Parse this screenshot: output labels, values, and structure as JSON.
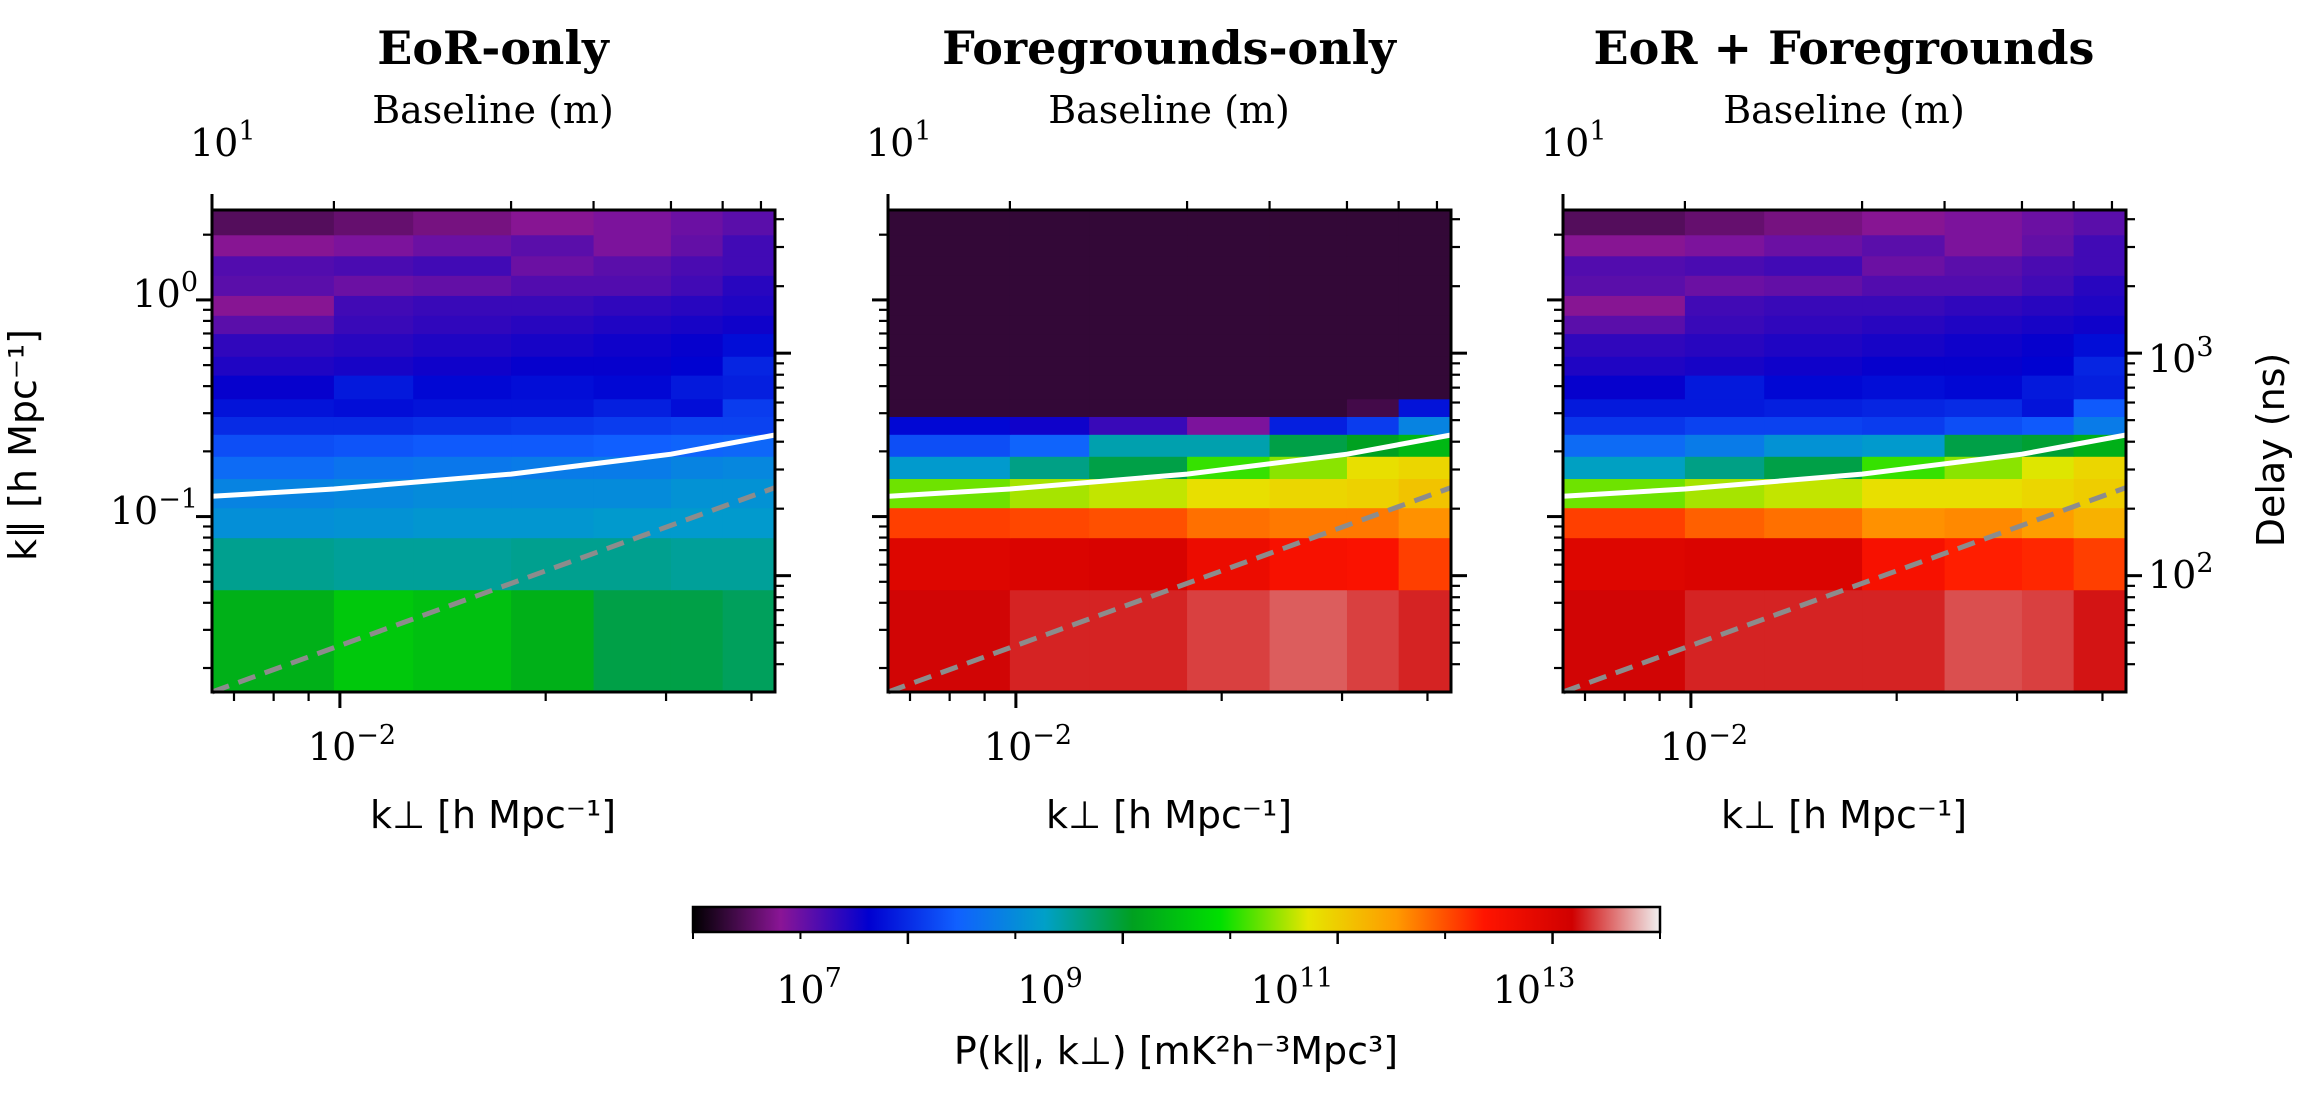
{
  "chart_data": {
    "type": "heatmap",
    "colorbar": {
      "label": "P(k∥, k⊥) [mK²h⁻³Mpc³]",
      "scale": "log",
      "range": [
        100000,
        100000000000000
      ],
      "ticks": [
        {
          "base": "10",
          "exp": "7",
          "value": 10000000
        },
        {
          "base": "10",
          "exp": "9",
          "value": 1000000000
        },
        {
          "base": "10",
          "exp": "11",
          "value": 100000000000
        },
        {
          "base": "10",
          "exp": "13",
          "value": 10000000000000
        }
      ],
      "colors": [
        "#000000",
        "#8a1596",
        "#0000d0",
        "#1060ff",
        "#00a0c8",
        "#00a020",
        "#00e000",
        "#e6e600",
        "#ff9a00",
        "#ff1400",
        "#d00000",
        "#f0f0f0"
      ]
    },
    "kperp_edges": [
      0.0065,
      0.0098,
      0.0128,
      0.0178,
      0.0235,
      0.0305,
      0.0363,
      0.0433
    ],
    "kpar_edges": [
      0.0155,
      0.046,
      0.08,
      0.11,
      0.15,
      0.19,
      0.24,
      0.29,
      0.35,
      0.45,
      0.55,
      0.7,
      0.85,
      1.05,
      1.3,
      1.6,
      2.0,
      2.6
    ],
    "panels": [
      {
        "title": "EoR-only",
        "top_label": "Baseline (m)",
        "top_tick": {
          "base": "10",
          "exp": "1"
        },
        "xlabel": "k⊥ [h Mpc⁻¹]",
        "ylabel": "k∥ [h Mpc⁻¹]",
        "x_tick": {
          "base": "10",
          "exp": "−2"
        },
        "y_ticks": [
          {
            "base": "10",
            "exp": "0"
          },
          {
            "base": "10",
            "exp": "−1"
          }
        ],
        "horizon_line": {
          "kperp": [
            0.0065,
            0.0098,
            0.0178,
            0.0305,
            0.0433
          ],
          "kpar": [
            0.124,
            0.134,
            0.157,
            0.194,
            0.238
          ]
        },
        "wedge_line": {
          "kperp": [
            0.0065,
            0.0433
          ],
          "kpar": [
            0.0155,
            0.136
          ]
        },
        "log10_power": [
          [
            9.3,
            9.6,
            9.5,
            9.3,
            8.9,
            8.9,
            8.8
          ],
          [
            8.55,
            8.5,
            8.5,
            8.55,
            8.55,
            8.5,
            8.5
          ],
          [
            8.05,
            8.1,
            8.15,
            8.15,
            8.2,
            8.2,
            8.2
          ],
          [
            7.9,
            7.95,
            8.0,
            8.0,
            8.0,
            8.1,
            8.1
          ],
          [
            7.6,
            7.7,
            7.75,
            7.8,
            7.8,
            7.9,
            7.95
          ],
          [
            7.3,
            7.35,
            7.4,
            7.4,
            7.45,
            7.5,
            7.55
          ],
          [
            7.0,
            7.0,
            7.05,
            7.1,
            7.15,
            7.2,
            7.2
          ],
          [
            6.8,
            6.75,
            6.8,
            6.8,
            6.9,
            6.75,
            7.15
          ],
          [
            6.6,
            6.85,
            6.7,
            6.75,
            6.7,
            6.85,
            6.9
          ],
          [
            6.45,
            6.5,
            6.55,
            6.6,
            6.6,
            6.65,
            6.95
          ],
          [
            6.35,
            6.4,
            6.45,
            6.5,
            6.55,
            6.6,
            6.75
          ],
          [
            6.1,
            6.3,
            6.35,
            6.4,
            6.45,
            6.5,
            6.55
          ],
          [
            5.8,
            6.25,
            6.3,
            6.3,
            6.35,
            6.4,
            6.45
          ],
          [
            6.1,
            6.0,
            6.05,
            6.15,
            6.15,
            6.25,
            6.4
          ],
          [
            6.15,
            6.2,
            6.25,
            6.0,
            6.1,
            6.2,
            6.25
          ],
          [
            5.8,
            5.9,
            6.0,
            6.1,
            5.9,
            6.05,
            6.25
          ],
          [
            5.5,
            5.6,
            5.7,
            5.8,
            5.9,
            6.0,
            6.1
          ]
        ]
      },
      {
        "title": "Foregrounds-only",
        "top_label": "Baseline (m)",
        "top_tick": {
          "base": "10",
          "exp": "1"
        },
        "xlabel": "k⊥ [h Mpc⁻¹]",
        "ylabel": "",
        "x_tick": {
          "base": "10",
          "exp": "−2"
        },
        "y_ticks": [],
        "horizon_line": {
          "kperp": [
            0.0065,
            0.0098,
            0.0178,
            0.0305,
            0.0433
          ],
          "kpar": [
            0.124,
            0.134,
            0.157,
            0.194,
            0.238
          ]
        },
        "wedge_line": {
          "kperp": [
            0.0065,
            0.0433
          ],
          "kpar": [
            0.0155,
            0.136
          ]
        },
        "log10_power": [
          [
            13.2,
            13.3,
            13.3,
            13.4,
            13.5,
            13.4,
            13.3
          ],
          [
            12.95,
            13.0,
            13.05,
            12.7,
            12.5,
            12.45,
            12.1
          ],
          [
            12.1,
            12.05,
            12.0,
            11.8,
            11.75,
            11.75,
            11.6
          ],
          [
            10.3,
            10.5,
            10.6,
            10.8,
            10.9,
            10.95,
            11.1
          ],
          [
            8.2,
            8.6,
            8.9,
            10.1,
            10.4,
            10.8,
            10.9
          ],
          [
            7.3,
            7.5,
            8.4,
            8.4,
            8.9,
            9.1,
            9.4
          ],
          [
            6.7,
            6.55,
            6.3,
            5.9,
            6.9,
            7.15,
            7.9
          ],
          [
            5.3,
            5.3,
            5.3,
            5.3,
            5.3,
            5.4,
            6.8
          ],
          [
            5.3,
            5.3,
            5.3,
            5.3,
            5.3,
            5.3,
            5.3
          ],
          [
            5.3,
            5.3,
            5.3,
            5.3,
            5.3,
            5.3,
            5.3
          ],
          [
            5.3,
            5.3,
            5.3,
            5.3,
            5.3,
            5.3,
            5.3
          ],
          [
            5.3,
            5.3,
            5.3,
            5.3,
            5.3,
            5.3,
            5.3
          ],
          [
            5.3,
            5.3,
            5.3,
            5.3,
            5.3,
            5.3,
            5.3
          ],
          [
            5.3,
            5.3,
            5.3,
            5.3,
            5.3,
            5.3,
            5.3
          ],
          [
            5.3,
            5.3,
            5.3,
            5.3,
            5.3,
            5.3,
            5.3
          ],
          [
            5.3,
            5.3,
            5.3,
            5.3,
            5.3,
            5.3,
            5.3
          ],
          [
            5.3,
            5.3,
            5.3,
            5.3,
            5.3,
            5.3,
            5.3
          ]
        ]
      },
      {
        "title": "EoR + Foregrounds",
        "top_label": "Baseline (m)",
        "top_tick": {
          "base": "10",
          "exp": "1"
        },
        "xlabel": "k⊥ [h Mpc⁻¹]",
        "ylabel": "",
        "x_tick": {
          "base": "10",
          "exp": "−2"
        },
        "y_ticks": [],
        "right_label": "Delay (ns)",
        "right_ticks": [
          {
            "base": "10",
            "exp": "3",
            "value": 1000
          },
          {
            "base": "10",
            "exp": "2",
            "value": 100
          }
        ],
        "delay_range": [
          30,
          4400
        ],
        "horizon_line": {
          "kperp": [
            0.0065,
            0.0098,
            0.0178,
            0.0305,
            0.0433
          ],
          "kpar": [
            0.124,
            0.134,
            0.157,
            0.194,
            0.238
          ]
        },
        "wedge_line": {
          "kperp": [
            0.0065,
            0.0433
          ],
          "kpar": [
            0.0155,
            0.136
          ]
        },
        "log10_power": [
          [
            13.2,
            13.3,
            13.3,
            13.3,
            13.45,
            13.4,
            13.25
          ],
          [
            12.95,
            13.0,
            13.0,
            12.5,
            12.3,
            12.25,
            12.1
          ],
          [
            12.1,
            11.9,
            11.8,
            11.6,
            11.65,
            11.5,
            11.3
          ],
          [
            10.3,
            10.5,
            10.6,
            10.8,
            10.8,
            10.9,
            11.0
          ],
          [
            8.3,
            8.6,
            8.9,
            10.1,
            10.4,
            10.7,
            10.9
          ],
          [
            7.6,
            7.8,
            8.1,
            8.2,
            8.9,
            9.0,
            9.3
          ],
          [
            7.1,
            7.2,
            7.2,
            7.15,
            7.3,
            7.4,
            7.8
          ],
          [
            6.85,
            6.85,
            6.9,
            6.95,
            7.0,
            6.8,
            7.4
          ],
          [
            6.6,
            6.85,
            6.7,
            6.75,
            6.7,
            6.85,
            6.9
          ],
          [
            6.45,
            6.5,
            6.55,
            6.6,
            6.6,
            6.65,
            6.95
          ],
          [
            6.35,
            6.4,
            6.45,
            6.5,
            6.55,
            6.6,
            6.75
          ],
          [
            6.1,
            6.3,
            6.35,
            6.4,
            6.45,
            6.5,
            6.55
          ],
          [
            5.8,
            6.25,
            6.3,
            6.3,
            6.35,
            6.4,
            6.45
          ],
          [
            6.1,
            6.0,
            6.05,
            6.15,
            6.15,
            6.25,
            6.4
          ],
          [
            6.15,
            6.2,
            6.25,
            6.0,
            6.1,
            6.2,
            6.25
          ],
          [
            5.8,
            5.9,
            6.0,
            6.1,
            5.9,
            6.05,
            6.25
          ],
          [
            5.5,
            5.6,
            5.7,
            5.8,
            5.9,
            6.0,
            6.1
          ]
        ]
      }
    ]
  }
}
